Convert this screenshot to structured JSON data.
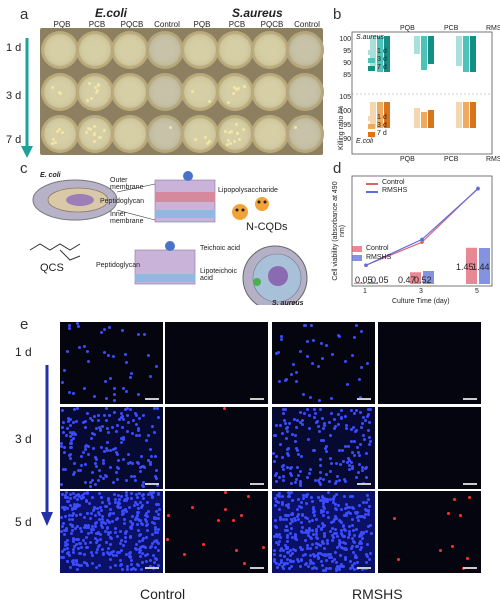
{
  "panel_a": {
    "letter": "a",
    "group1_title": "E.coli",
    "group2_title": "S.aureus",
    "columns": [
      "PQB",
      "PCB",
      "PQCB",
      "Control",
      "PQB",
      "PCB",
      "PQCB",
      "Control"
    ],
    "rows": [
      "1 d",
      "3 d",
      "7 d"
    ]
  },
  "panel_b": {
    "letter": "b",
    "ylabel": "Killing ratio /%",
    "top_label": "S.aureus",
    "bottom_label": "E.coli",
    "legend": [
      "1 d",
      "3 d",
      "7 d"
    ],
    "groups": [
      "PQB",
      "PCB",
      "RMSHS"
    ],
    "ticks_top": [
      "100",
      "95",
      "90",
      "85"
    ],
    "ticks_bottom": [
      "105",
      "100",
      "95",
      "90"
    ]
  },
  "panel_c": {
    "letter": "c",
    "labels": {
      "ecoli": "E. coli",
      "outer": "Outer membrane",
      "peptido": "Peptidoglycan",
      "inner": "Inner membrane",
      "lps": "Lipopolysaccharide",
      "ncqds": "N-CQDs",
      "qcs": "QCS",
      "teichoic": "Teichoic acid",
      "peptido2": "Peptidoglycan",
      "lipoteichoic": "Lipoteichoic acid",
      "saureus": "S. aureus"
    }
  },
  "panel_d": {
    "letter": "d",
    "ylabel": "Cell viability (absorbance at 490 nm)",
    "xlabel": "Culture Time (day)",
    "legend_line": [
      "Control",
      "RMSHS"
    ],
    "legend_bar": [
      "Control",
      "RMSHS"
    ],
    "bar_labels": [
      "0.05",
      "0.05",
      "0.47",
      "0.52",
      "1.45",
      "1.44"
    ],
    "colors": {
      "control": "#e06070",
      "rmshs": "#5a6fd8"
    }
  },
  "chart_data": {
    "type": "line",
    "x": [
      1,
      3,
      5
    ],
    "xticks": [
      "1",
      "3",
      "5"
    ],
    "series": [
      {
        "name": "Control",
        "values": [
          0.05,
          0.47,
          1.45
        ]
      },
      {
        "name": "RMSHS",
        "values": [
          0.05,
          0.52,
          1.44
        ]
      }
    ],
    "xlabel": "Culture Time (day)",
    "ylabel": "Cell viability (absorbance at 490 nm)"
  },
  "panel_e": {
    "letter": "e",
    "rows": [
      "1 d",
      "3 d",
      "5 d"
    ],
    "columns": [
      "Control",
      "RMSHS"
    ]
  }
}
